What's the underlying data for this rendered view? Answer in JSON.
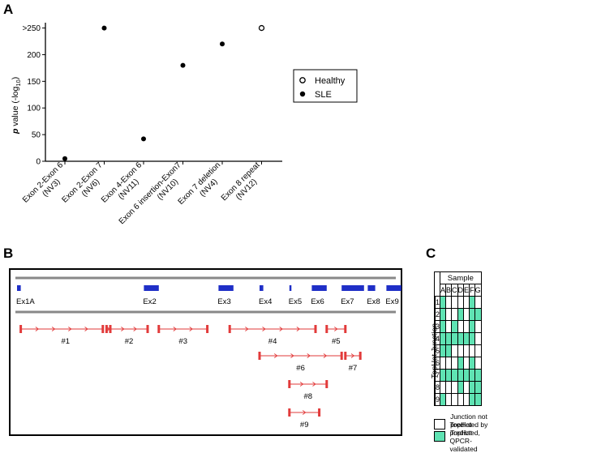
{
  "panel_a": {
    "label": "A",
    "chart_data": {
      "type": "scatter",
      "ylabel_prefix": "p",
      "ylabel_main": " value (-log",
      "ylabel_sub": "10",
      "ylabel_suffix": ")",
      "ylim": [
        0,
        260
      ],
      "yticks": [
        {
          "v": 0,
          "t": "0"
        },
        {
          "v": 50,
          "t": "50"
        },
        {
          "v": 100,
          "t": "100"
        },
        {
          "v": 150,
          "t": "150"
        },
        {
          "v": 200,
          "t": "200"
        },
        {
          "v": 250,
          "t": ">250"
        }
      ],
      "categories": [
        {
          "line1": "Exon 2-Exon 6",
          "line2": "(NV3)"
        },
        {
          "line1": "Exon 2-Exon 7",
          "line2": "(NV6)"
        },
        {
          "line1": "Exon 4-Exon 6",
          "line2": "(NV11)"
        },
        {
          "line1": "Exon 6 insertion-Exon7",
          "line2": "(NV10)"
        },
        {
          "line1": "Exon 7 deletion",
          "line2": "(NV4)"
        },
        {
          "line1": "Exon 8 repeat",
          "line2": "(NV12)"
        }
      ],
      "series": [
        {
          "name": "Healthy",
          "marker": "open",
          "points": [
            {
              "x": 5,
              "y": 250
            }
          ]
        },
        {
          "name": "SLE",
          "marker": "filled",
          "points": [
            {
              "x": 0,
              "y": 5
            },
            {
              "x": 1,
              "y": 250
            },
            {
              "x": 2,
              "y": 42
            },
            {
              "x": 3,
              "y": 180
            },
            {
              "x": 4,
              "y": 220
            }
          ]
        }
      ],
      "legend": [
        {
          "name": "Healthy",
          "marker": "open"
        },
        {
          "name": "SLE",
          "marker": "filled"
        }
      ]
    }
  },
  "panel_b": {
    "label": "B",
    "exon_color": "#1f2fc7",
    "junction_color": "#e23a3a",
    "exons": [
      {
        "label": "Ex1A",
        "start": 0,
        "end": 1
      },
      {
        "label": "Ex2",
        "start": 34,
        "end": 38
      },
      {
        "label": "Ex3",
        "start": 54,
        "end": 58
      },
      {
        "label": "Ex4",
        "start": 65,
        "end": 66
      },
      {
        "label": "Ex5",
        "start": 73,
        "end": 73.5
      },
      {
        "label": "Ex6",
        "start": 79,
        "end": 83
      },
      {
        "label": "Ex7",
        "start": 87,
        "end": 93
      },
      {
        "label": "Ex8",
        "start": 94,
        "end": 96
      },
      {
        "label": "Ex9",
        "start": 99,
        "end": 103
      }
    ],
    "junctions": [
      {
        "label": "#1",
        "row": 0,
        "segments": [
          [
            1,
            23
          ],
          [
            24,
            25
          ]
        ]
      },
      {
        "label": "#2",
        "row": 0,
        "segments": [
          [
            25,
            35
          ]
        ]
      },
      {
        "label": "#3",
        "row": 0,
        "segments": [
          [
            38,
            51
          ]
        ]
      },
      {
        "label": "#4",
        "row": 0,
        "segments": [
          [
            57,
            80
          ]
        ]
      },
      {
        "label": "#5",
        "row": 0,
        "segments": [
          [
            83,
            88
          ]
        ]
      },
      {
        "label": "#6",
        "row": 1,
        "segments": [
          [
            65,
            87
          ]
        ]
      },
      {
        "label": "#7",
        "row": 1,
        "segments": [
          [
            88,
            92
          ]
        ]
      },
      {
        "label": "#8",
        "row": 2,
        "segments": [
          [
            73,
            83
          ]
        ]
      },
      {
        "label": "#9",
        "row": 3,
        "segments": [
          [
            73,
            81
          ]
        ]
      }
    ]
  },
  "panel_c": {
    "label": "C",
    "sample_header": "Sample",
    "row_axis_label": "TopHat Junction",
    "columns": [
      "A",
      "B",
      "C",
      "D",
      "E",
      "F",
      "G"
    ],
    "rows": [
      {
        "label": "1",
        "cells": [
          1,
          0,
          0,
          0,
          0,
          1,
          0
        ]
      },
      {
        "label": "2",
        "cells": [
          1,
          0,
          0,
          1,
          0,
          1,
          1
        ]
      },
      {
        "label": "3",
        "cells": [
          1,
          0,
          1,
          0,
          0,
          1,
          0
        ]
      },
      {
        "label": "4",
        "cells": [
          1,
          1,
          1,
          1,
          1,
          1,
          0
        ]
      },
      {
        "label": "5",
        "cells": [
          1,
          1,
          0,
          0,
          0,
          0,
          0
        ]
      },
      {
        "label": "6",
        "cells": [
          0,
          0,
          0,
          1,
          0,
          1,
          0
        ]
      },
      {
        "label": "7",
        "cells": [
          1,
          1,
          1,
          1,
          1,
          1,
          1
        ]
      },
      {
        "label": "8",
        "cells": [
          0,
          0,
          0,
          1,
          0,
          1,
          1
        ]
      },
      {
        "label": "9",
        "cells": [
          1,
          0,
          0,
          0,
          0,
          1,
          1
        ]
      }
    ],
    "validated_color": "#5fe3b3",
    "legend": [
      {
        "text": "Junction not predicted by TopHat",
        "color": "#ffffff"
      },
      {
        "text": "TopHat-predicted, QPCR-validated",
        "color": "#5fe3b3"
      }
    ]
  }
}
